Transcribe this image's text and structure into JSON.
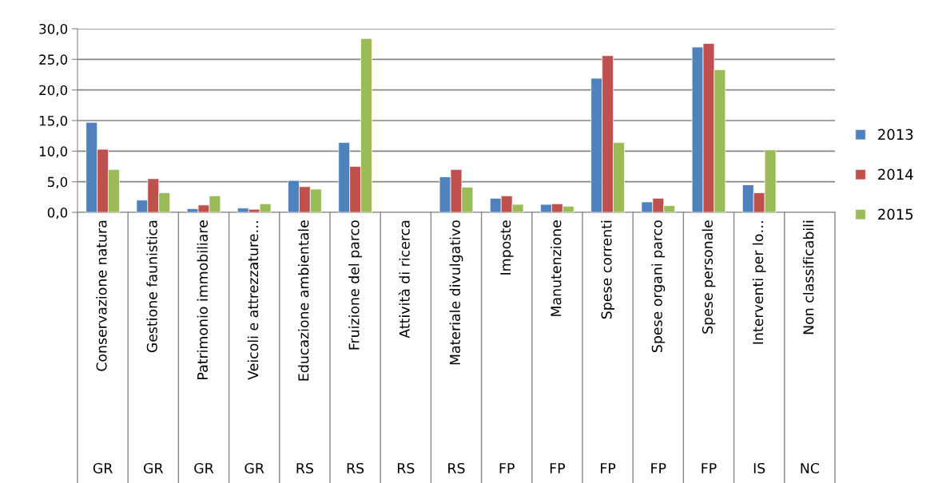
{
  "chart_data": {
    "type": "bar",
    "categories": [
      "Conservazione natura",
      "Gestione faunistica",
      "Patrimonio immobiliare",
      "Veicoli e attrezzature…",
      "Educazione ambientale",
      "Fruizione del parco",
      "Attività di ricerca",
      "Materiale divulgativo",
      "Imposte",
      "Manutenzione",
      "Spese correnti",
      "Spese organi parco",
      "Spese personale",
      "Interventi per lo…",
      "Non classificabili"
    ],
    "annotations": [
      "GR",
      "GR",
      "GR",
      "GR",
      "RS",
      "RS",
      "RS",
      "RS",
      "FP",
      "FP",
      "FP",
      "FP",
      "FP",
      "IS",
      "NC"
    ],
    "series": [
      {
        "name": "2013",
        "color": "#4f81bd",
        "values": [
          14.7,
          2.0,
          0.6,
          0.7,
          5.2,
          11.4,
          null,
          5.8,
          2.3,
          1.3,
          21.9,
          1.7,
          27.0,
          4.5,
          null
        ]
      },
      {
        "name": "2014",
        "color": "#c0504d",
        "values": [
          10.3,
          5.5,
          1.2,
          0.5,
          4.2,
          7.5,
          null,
          7.0,
          2.7,
          1.4,
          25.6,
          2.3,
          27.6,
          3.2,
          null
        ]
      },
      {
        "name": "2015",
        "color": "#9bbb59",
        "values": [
          7.0,
          3.2,
          2.7,
          1.4,
          3.8,
          28.4,
          null,
          4.1,
          1.3,
          1.0,
          11.4,
          1.1,
          23.3,
          10.2,
          null
        ]
      }
    ],
    "ylim": [
      0,
      30
    ],
    "yticks": [
      {
        "value": 0,
        "label": "0,0"
      },
      {
        "value": 5,
        "label": "5,0"
      },
      {
        "value": 10,
        "label": "10,0"
      },
      {
        "value": 15,
        "label": "15,0"
      },
      {
        "value": 20,
        "label": "20,0"
      },
      {
        "value": 25,
        "label": "25,0"
      },
      {
        "value": 30,
        "label": "30,0"
      }
    ],
    "grid": "y",
    "legend": "right"
  }
}
